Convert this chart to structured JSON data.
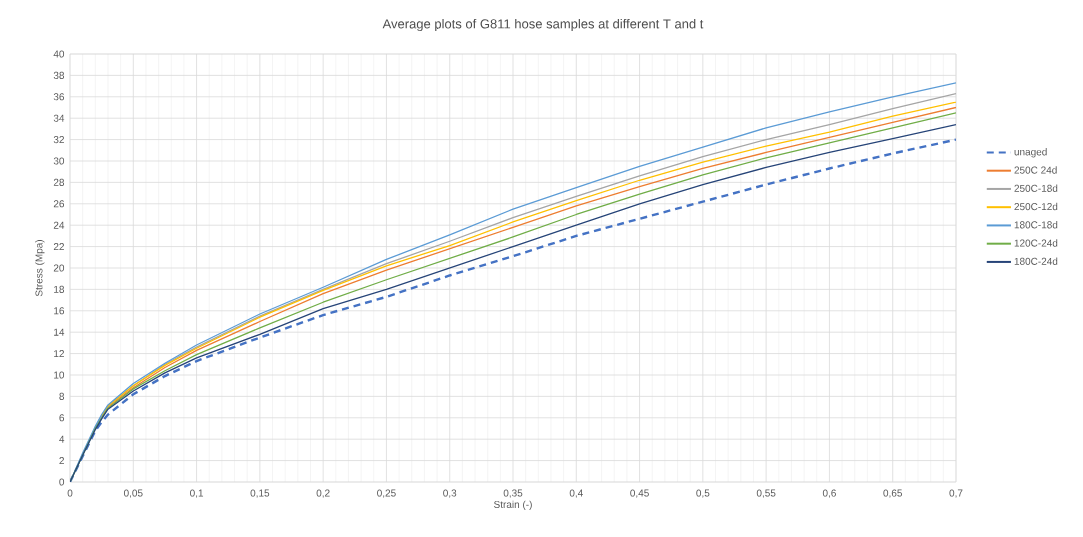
{
  "chart_data": {
    "type": "line",
    "title": "Average plots of G811 hose samples at different T and t",
    "xlabel": "Strain (-)",
    "ylabel": "Stress (Mpa)",
    "x": [
      0,
      0.01,
      0.02,
      0.025,
      0.03,
      0.05,
      0.075,
      0.1,
      0.15,
      0.2,
      0.25,
      0.3,
      0.35,
      0.4,
      0.45,
      0.5,
      0.55,
      0.6,
      0.65,
      0.7
    ],
    "xlim": [
      0,
      0.7
    ],
    "ylim": [
      0,
      40
    ],
    "xticks": [
      0,
      {
        "value": 0.05,
        "label": "0,05"
      },
      {
        "value": 0.1,
        "label": "0,1"
      },
      {
        "value": 0.15,
        "label": "0,15"
      },
      {
        "value": 0.2,
        "label": "0,2"
      },
      {
        "value": 0.25,
        "label": "0,25"
      },
      {
        "value": 0.3,
        "label": "0,3"
      },
      {
        "value": 0.35,
        "label": "0,35"
      },
      {
        "value": 0.4,
        "label": "0,4"
      },
      {
        "value": 0.45,
        "label": "0,45"
      },
      {
        "value": 0.5,
        "label": "0,5"
      },
      {
        "value": 0.55,
        "label": "0,55"
      },
      {
        "value": 0.6,
        "label": "0,6"
      },
      {
        "value": 0.65,
        "label": "0,65"
      },
      {
        "value": 0.7,
        "label": "0,7"
      }
    ],
    "yticks": [
      0,
      2,
      4,
      6,
      8,
      10,
      12,
      14,
      16,
      18,
      20,
      22,
      24,
      26,
      28,
      30,
      32,
      34,
      36,
      38,
      40
    ],
    "grid": true,
    "legend": "right",
    "series": [
      {
        "name": "unaged",
        "color": "#4472c4",
        "line_style": "dashed",
        "values": [
          0,
          2.4,
          4.8,
          5.6,
          6.3,
          8.2,
          9.9,
          11.3,
          13.5,
          15.6,
          17.3,
          19.3,
          21.1,
          23.0,
          24.6,
          26.2,
          27.8,
          29.3,
          30.7,
          32.0
        ]
      },
      {
        "name": "250C 24d",
        "color": "#ed7d31",
        "values": [
          null,
          null,
          null,
          6.1,
          7.0,
          8.8,
          10.7,
          12.3,
          15.0,
          17.6,
          19.8,
          21.8,
          23.8,
          25.8,
          27.6,
          29.3,
          30.8,
          32.2,
          33.6,
          35.0
        ]
      },
      {
        "name": "250C-18d",
        "color": "#a5a5a5",
        "values": [
          0,
          2.6,
          5.1,
          6.2,
          7.1,
          9.0,
          11.0,
          12.6,
          15.5,
          18.0,
          20.4,
          22.5,
          24.7,
          26.7,
          28.6,
          30.4,
          32.0,
          33.4,
          34.9,
          36.3
        ]
      },
      {
        "name": "250C-12d",
        "color": "#ffc000",
        "values": [
          null,
          null,
          null,
          6.2,
          7.1,
          9.0,
          10.9,
          12.5,
          15.4,
          17.9,
          20.2,
          22.1,
          24.3,
          26.3,
          28.2,
          29.9,
          31.4,
          32.7,
          34.2,
          35.5
        ]
      },
      {
        "name": "180C-18d",
        "color": "#5b9bd5",
        "values": [
          0,
          2.7,
          5.2,
          6.3,
          7.2,
          9.2,
          11.1,
          12.8,
          15.7,
          18.2,
          20.8,
          23.1,
          25.5,
          27.5,
          29.5,
          31.3,
          33.1,
          34.6,
          36.0,
          37.3
        ]
      },
      {
        "name": "120C-24d",
        "color": "#70ad47",
        "values": [
          0,
          2.5,
          5.0,
          6.0,
          6.9,
          8.7,
          10.4,
          11.9,
          14.4,
          16.8,
          18.9,
          20.9,
          22.9,
          25.0,
          26.9,
          28.7,
          30.3,
          31.7,
          33.1,
          34.5
        ]
      },
      {
        "name": "180C-24d",
        "color": "#264478",
        "values": [
          0,
          2.5,
          4.9,
          5.9,
          6.8,
          8.5,
          10.2,
          11.6,
          13.8,
          16.2,
          18.0,
          20.0,
          22.0,
          24.0,
          26.0,
          27.8,
          29.4,
          30.8,
          32.1,
          33.4
        ]
      }
    ]
  }
}
